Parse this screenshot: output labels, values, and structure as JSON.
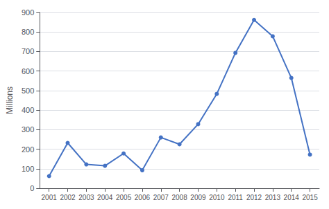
{
  "chart_data": {
    "type": "line",
    "x": [
      2001,
      2002,
      2003,
      2004,
      2005,
      2006,
      2007,
      2008,
      2009,
      2010,
      2011,
      2012,
      2013,
      2014,
      2015
    ],
    "values": [
      62,
      232,
      122,
      115,
      178,
      92,
      260,
      225,
      328,
      483,
      693,
      862,
      778,
      565,
      172
    ],
    "color": "#4472C4",
    "marker": "circle",
    "ylabel": "Millions",
    "xlim": [
      2000.5,
      2015.5
    ],
    "xticks": [
      2001,
      2002,
      2003,
      2004,
      2005,
      2006,
      2007,
      2008,
      2009,
      2010,
      2011,
      2012,
      2013,
      2014,
      2015
    ],
    "ylim": [
      0,
      900
    ],
    "yticks": [
      0,
      100,
      200,
      300,
      400,
      500,
      600,
      700,
      800,
      900
    ],
    "grid": true
  }
}
